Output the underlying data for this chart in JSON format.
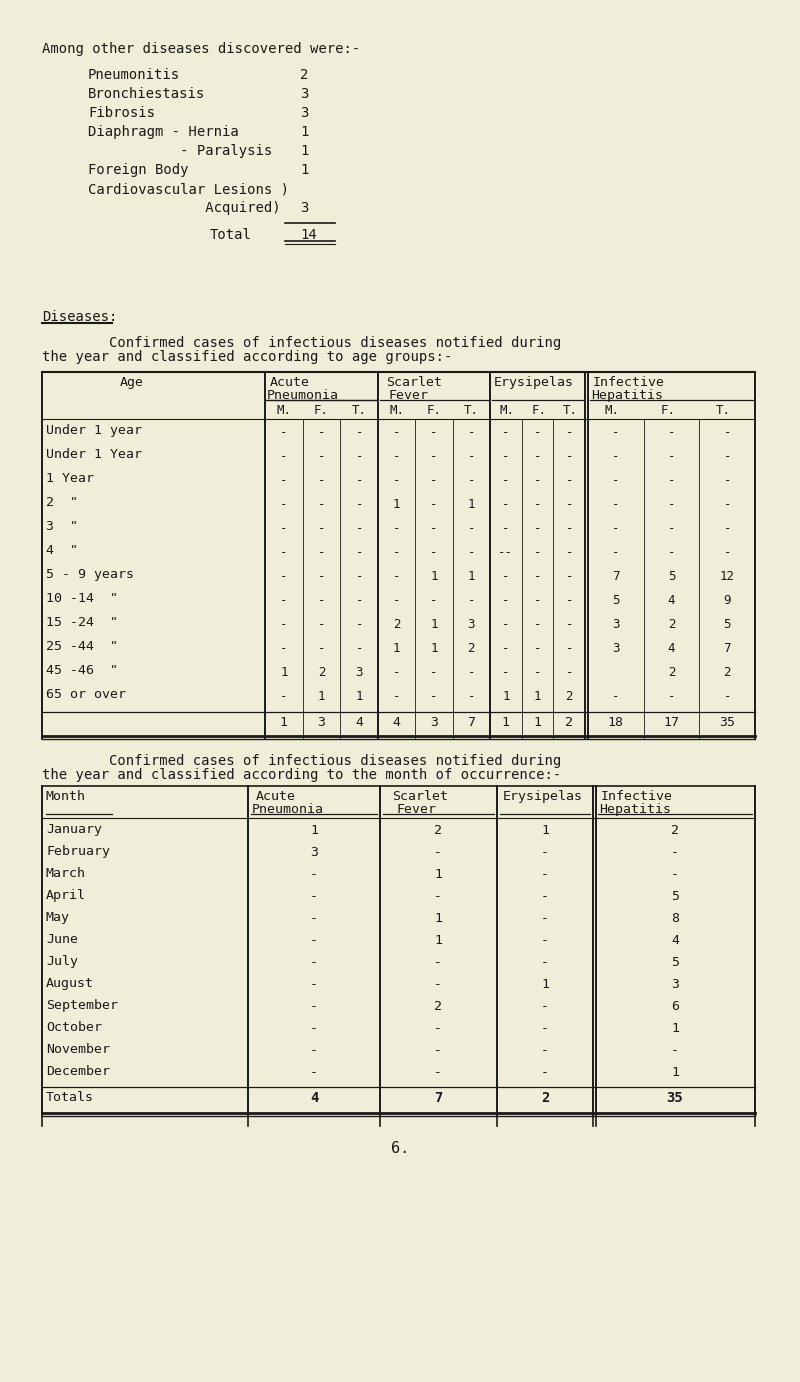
{
  "bg_color": "#f0edd8",
  "text_color": "#1a1a1a",
  "heading": "Among other diseases discovered were:-",
  "disease_list": [
    [
      "Pneumonitis",
      "2"
    ],
    [
      "Bronchiestasis",
      "3"
    ],
    [
      "Fibrosis",
      "3"
    ],
    [
      "Diaphragm - Hernia",
      "1"
    ],
    [
      "           - Paralysis",
      "1"
    ],
    [
      "Foreign Body",
      "1"
    ],
    [
      "Cardiovascular Lesions )",
      ""
    ],
    [
      "              Acquired)",
      "3"
    ]
  ],
  "total_label": "Total",
  "total_value": "14",
  "diseases_heading": "Diseases:",
  "age_table_intro1": "        Confirmed cases of infectious diseases notified during",
  "age_table_intro2": "the year and classified according to age groups:-",
  "age_rows": [
    [
      "Under 1 year",
      "-",
      "-",
      "-",
      "-",
      "-",
      "-",
      "-",
      "-",
      "-",
      "-",
      "-",
      "-"
    ],
    [
      "Under 1 Year",
      "-",
      "-",
      "-",
      "-",
      "-",
      "-",
      "-",
      "-",
      "-",
      "-",
      "-",
      "-"
    ],
    [
      "1 Year",
      "-",
      "-",
      "-",
      "-",
      "-",
      "-",
      "-",
      "-",
      "-",
      "-",
      "-",
      "-"
    ],
    [
      "2  \"",
      "-",
      "-",
      "-",
      "1",
      "-",
      "1",
      "-",
      "-",
      "-",
      "-",
      "-",
      "-"
    ],
    [
      "3  \"",
      "-",
      "-",
      "-",
      "-",
      "-",
      "-",
      "-",
      "-",
      "-",
      "-",
      "-",
      "-"
    ],
    [
      "4  \"",
      "-",
      "-",
      "-",
      "-",
      "-",
      "-",
      "--",
      "-",
      "-",
      "-",
      "-",
      "-"
    ],
    [
      "5 - 9 years",
      "-",
      "-",
      "-",
      "-",
      "1",
      "1",
      "-",
      "-",
      "-",
      "7",
      "5",
      "12"
    ],
    [
      "10 -14  \"",
      "-",
      "-",
      "-",
      "-",
      "-",
      "-",
      "-",
      "-",
      "-",
      "5",
      "4",
      "9"
    ],
    [
      "15 -24  \"",
      "-",
      "-",
      "-",
      "2",
      "1",
      "3",
      "-",
      "-",
      "-",
      "3",
      "2",
      "5"
    ],
    [
      "25 -44  \"",
      "-",
      "-",
      "-",
      "1",
      "1",
      "2",
      "-",
      "-",
      "-",
      "3",
      "4",
      "7"
    ],
    [
      "45 -46  \"",
      "1",
      "2",
      "3",
      "-",
      "-",
      "-",
      "-",
      "-",
      "-",
      "",
      "2",
      "2"
    ],
    [
      "65 or over",
      "-",
      "1",
      "1",
      "-",
      "-",
      "-",
      "1",
      "1",
      "2",
      "-",
      "-",
      "-"
    ]
  ],
  "age_totals": [
    "1",
    "3",
    "4",
    "4",
    "3",
    "7",
    "1",
    "1",
    "2",
    "18",
    "17",
    "35"
  ],
  "month_table_intro1": "        Confirmed cases of infectious diseases notified during",
  "month_table_intro2": "the year and classified according to the month of occurrence:-",
  "month_rows": [
    [
      "January",
      "1",
      "2",
      "1",
      "2"
    ],
    [
      "February",
      "3",
      "-",
      "-",
      "-"
    ],
    [
      "March",
      "-",
      "1",
      "-",
      "-"
    ],
    [
      "April",
      "-",
      "-",
      "-",
      "5"
    ],
    [
      "May",
      "-",
      "1",
      "-",
      "8"
    ],
    [
      "June",
      "-",
      "1",
      "-",
      "4"
    ],
    [
      "July",
      "-",
      "-",
      "-",
      "5"
    ],
    [
      "August",
      "-",
      "-",
      "1",
      "3"
    ],
    [
      "September",
      "-",
      "2",
      "-",
      "6"
    ],
    [
      "October",
      "-",
      "-",
      "-",
      "1"
    ],
    [
      "November",
      "-",
      "-",
      "-",
      "-"
    ],
    [
      "December",
      "-",
      "-",
      "-",
      "1"
    ]
  ],
  "month_totals": [
    "4",
    "7",
    "2",
    "35"
  ],
  "page_number": "6."
}
